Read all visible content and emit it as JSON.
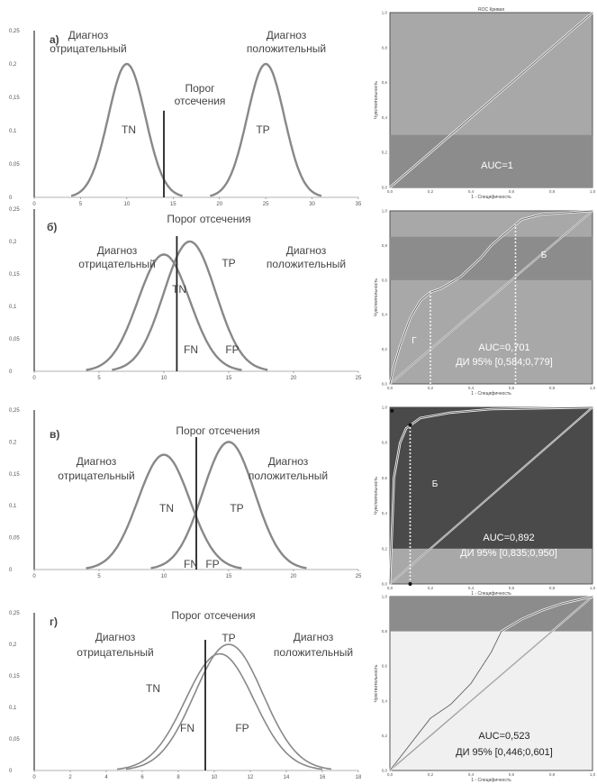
{
  "chart_data": [
    {
      "type": "line",
      "panel_letter": "а)",
      "ylim": [
        0,
        0.25
      ],
      "yticks": [
        "0",
        "0,05",
        "0,1",
        "0,15",
        "0,2",
        "0,25"
      ],
      "xlim": [
        0,
        30
      ],
      "xticks": [
        "0",
        "5",
        "10",
        "15",
        "20",
        "25",
        "30",
        "35"
      ],
      "cutoff": 14,
      "series": [
        {
          "mean": 10,
          "sd": 2,
          "peak": 0.2
        },
        {
          "mean": 25,
          "sd": 2,
          "peak": 0.2
        }
      ],
      "labels": {
        "neg": [
          "Диагноз",
          "отрицательный"
        ],
        "pos": [
          "Диагноз",
          "положительный"
        ],
        "cutoff": [
          "Порог",
          "отсечения"
        ],
        "tn": "TN",
        "tp": "TP"
      }
    },
    {
      "type": "line",
      "panel_letter": "б)",
      "ylim": [
        0,
        0.25
      ],
      "yticks": [
        "0",
        "0,05",
        "0,1",
        "0,15",
        "0,2",
        "0,25"
      ],
      "xlim": [
        0,
        25
      ],
      "xticks": [
        "0",
        "5",
        "10",
        "15",
        "20",
        "25"
      ],
      "cutoff": 11,
      "series": [
        {
          "mean": 10,
          "sd": 2,
          "peak": 0.18
        },
        {
          "mean": 12,
          "sd": 2,
          "peak": 0.2
        }
      ],
      "labels": {
        "cutoff": "Порог отсечения",
        "neg": [
          "Диагноз",
          "отрицательный"
        ],
        "pos": [
          "Диагноз",
          "положительный"
        ],
        "tn": "TN",
        "tp": "TP",
        "fn": "FN",
        "fp": "FP"
      }
    },
    {
      "type": "line",
      "panel_letter": "в)",
      "ylim": [
        0,
        0.25
      ],
      "yticks": [
        "0",
        "0,05",
        "0,1",
        "0,15",
        "0,2",
        "0,25"
      ],
      "xlim": [
        0,
        25
      ],
      "xticks": [
        "0",
        "5",
        "10",
        "15",
        "20",
        "25"
      ],
      "cutoff": 12.5,
      "series": [
        {
          "mean": 10,
          "sd": 2,
          "peak": 0.18
        },
        {
          "mean": 15,
          "sd": 2,
          "peak": 0.2
        }
      ],
      "labels": {
        "cutoff": "Порог отсечения",
        "neg": [
          "Диагноз",
          "отрицательный"
        ],
        "pos": [
          "Диагноз",
          "положительный"
        ],
        "tn": "TN",
        "tp": "TP",
        "fn": "FN",
        "fp": "FP"
      }
    },
    {
      "type": "line",
      "panel_letter": "г)",
      "ylim": [
        0,
        0.25
      ],
      "yticks": [
        "0",
        "0,05",
        "0,1",
        "0,15",
        "0,2",
        "0,25"
      ],
      "xlim": [
        0,
        18
      ],
      "xticks": [
        "0",
        "2",
        "4",
        "6",
        "8",
        "10",
        "12",
        "14",
        "16",
        "18"
      ],
      "cutoff": 9.5,
      "series": [
        {
          "mean": 10.3,
          "sd": 1.9,
          "peak": 0.185
        },
        {
          "mean": 10.8,
          "sd": 1.9,
          "peak": 0.2
        }
      ],
      "labels": {
        "cutoff": "Порог отсечения",
        "neg": [
          "Диагноз",
          "отрицательный"
        ],
        "pos": [
          "Диагноз",
          "положительный"
        ],
        "tn": "TN",
        "tp": "TP",
        "fn": "FN",
        "fp": "FP"
      }
    }
  ],
  "roc": [
    {
      "title": "ROC Кривая",
      "band": [
        0,
        0.3
      ],
      "xlabel": "1 - Специфичность",
      "ylabel": "Чувствительность",
      "auc_text": "AUC=1",
      "curve": [
        [
          0,
          0
        ],
        [
          1,
          1
        ]
      ]
    },
    {
      "title": "",
      "band": [
        0.6,
        0.85
      ],
      "xlabel": "1 - Специфичность",
      "ylabel": "Чувствительность",
      "auc_text": [
        "AUC=0,701",
        "ДИ 95% [0,584;0,779]"
      ],
      "marks": [
        "Б",
        "Г"
      ],
      "curve": [
        [
          0,
          0
        ],
        [
          0.02,
          0.1
        ],
        [
          0.05,
          0.22
        ],
        [
          0.1,
          0.38
        ],
        [
          0.15,
          0.48
        ],
        [
          0.2,
          0.53
        ],
        [
          0.25,
          0.55
        ],
        [
          0.35,
          0.62
        ],
        [
          0.45,
          0.73
        ],
        [
          0.5,
          0.8
        ],
        [
          0.55,
          0.85
        ],
        [
          0.6,
          0.9
        ],
        [
          0.65,
          0.95
        ],
        [
          0.75,
          0.98
        ],
        [
          1,
          1
        ]
      ]
    },
    {
      "title": "",
      "band": [
        0.2,
        1.0
      ],
      "xlabel": "1 - Специфичность",
      "ylabel": "Чувствительность",
      "auc_text": [
        "AUC=0,892",
        "ДИ 95% [0,835;0,950]"
      ],
      "marks": [
        "Б"
      ],
      "curve": [
        [
          0,
          0
        ],
        [
          0.01,
          0.3
        ],
        [
          0.02,
          0.6
        ],
        [
          0.05,
          0.8
        ],
        [
          0.08,
          0.88
        ],
        [
          0.15,
          0.94
        ],
        [
          0.3,
          0.97
        ],
        [
          0.5,
          0.99
        ],
        [
          1,
          1
        ]
      ]
    },
    {
      "title": "",
      "band": [
        0.8,
        1.0
      ],
      "xlabel": "1 - Специфичность",
      "ylabel": "Чувствительность",
      "auc_text": [
        "AUC=0,523",
        "ДИ 95% [0,446;0,601]"
      ],
      "yticks": [
        "0,0",
        "0,2",
        "0,4",
        "0,6",
        "0,8",
        "1,0"
      ],
      "xticks": [
        "0,0",
        "0,2",
        "0,4",
        "0,6",
        "0,8",
        "1,0"
      ],
      "curve": [
        [
          0,
          0
        ],
        [
          0.1,
          0.15
        ],
        [
          0.2,
          0.3
        ],
        [
          0.3,
          0.38
        ],
        [
          0.4,
          0.5
        ],
        [
          0.5,
          0.68
        ],
        [
          0.55,
          0.8
        ],
        [
          0.65,
          0.87
        ],
        [
          0.75,
          0.92
        ],
        [
          0.85,
          0.96
        ],
        [
          1,
          1
        ]
      ]
    }
  ],
  "colors": {
    "curve": "#888888",
    "axis": "#333333",
    "cutoff": "#222222",
    "roc_light": "#a8a8a8",
    "roc_mid": "#8c8c8c",
    "roc_dark": "#4a4a4a",
    "roc_pale": "#f0f0f0"
  }
}
